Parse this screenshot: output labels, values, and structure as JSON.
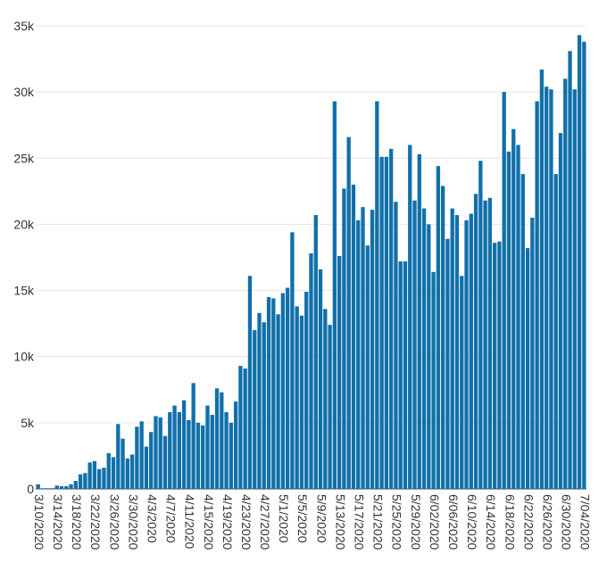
{
  "chart_data": {
    "type": "bar",
    "title": "",
    "xlabel": "",
    "ylabel": "",
    "ylim": [
      0,
      35000
    ],
    "grid": true,
    "bar_color": "#1170aa",
    "y_ticks": [
      {
        "value": 0,
        "label": "0"
      },
      {
        "value": 5000,
        "label": "5k"
      },
      {
        "value": 10000,
        "label": "10k"
      },
      {
        "value": 15000,
        "label": "15k"
      },
      {
        "value": 20000,
        "label": "20k"
      },
      {
        "value": 25000,
        "label": "25k"
      },
      {
        "value": 30000,
        "label": "30k"
      },
      {
        "value": 35000,
        "label": "35k"
      }
    ],
    "x_tick_labels": [
      "3/10/2020",
      "3/14/2020",
      "3/18/2020",
      "3/22/2020",
      "3/26/2020",
      "3/30/2020",
      "4/3/2020",
      "4/7/2020",
      "4/11/2020",
      "4/15/2020",
      "4/19/2020",
      "4/23/2020",
      "4/27/2020",
      "5/1/2020",
      "5/5/2020",
      "5/9/2020",
      "5/13/2020",
      "5/17/2020",
      "5/21/2020",
      "5/25/2020",
      "5/29/2020",
      "6/02/2020",
      "6/06/2020",
      "6/10/2020",
      "6/14/2020",
      "6/18/2020",
      "6/22/2020",
      "6/26/2020",
      "6/30/2020",
      "7/04/2020"
    ],
    "values": [
      350,
      50,
      50,
      50,
      250,
      200,
      200,
      350,
      600,
      1100,
      1200,
      2000,
      2100,
      1500,
      1600,
      2700,
      2400,
      4900,
      3800,
      2300,
      2600,
      4700,
      5100,
      3200,
      4300,
      5500,
      5400,
      4000,
      5800,
      6300,
      5800,
      6700,
      5200,
      8000,
      5000,
      4800,
      6300,
      5600,
      7600,
      7300,
      5800,
      5000,
      6600,
      9300,
      9100,
      16100,
      12000,
      13300,
      12600,
      14500,
      14400,
      13200,
      14800,
      15200,
      19400,
      13800,
      13100,
      14900,
      17800,
      20700,
      16600,
      13600,
      12400,
      29300,
      17600,
      22700,
      26600,
      23000,
      20300,
      21300,
      18400,
      21100,
      29300,
      25100,
      25100,
      25700,
      21700,
      17200,
      17200,
      26000,
      21800,
      25300,
      21200,
      20000,
      16400,
      24400,
      22900,
      18900,
      21200,
      20700,
      16100,
      20300,
      20800,
      22300,
      24800,
      21800,
      22000,
      18600,
      18700,
      30000,
      25500,
      27200,
      26000,
      23800,
      18200,
      20500,
      29300,
      31700,
      30400,
      30200,
      23800,
      26900,
      31000,
      33100,
      30200,
      34300,
      33800
    ]
  }
}
